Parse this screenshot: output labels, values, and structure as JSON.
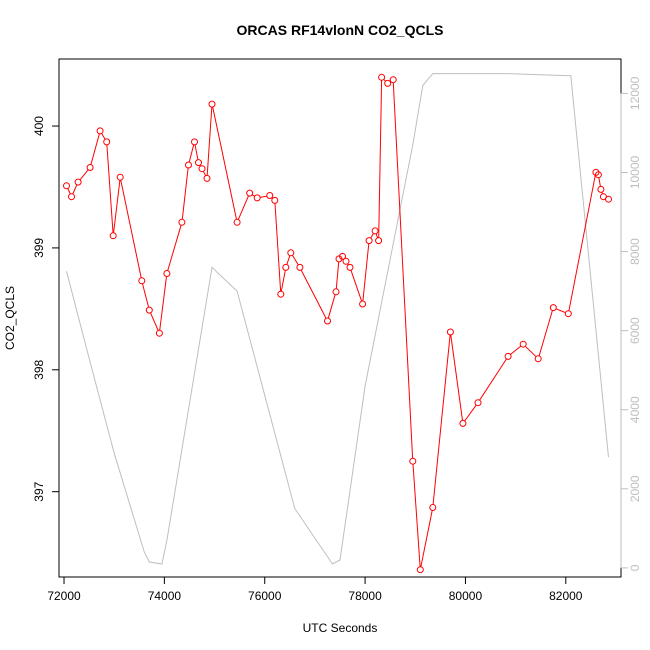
{
  "chart_data": {
    "type": "line",
    "title": "ORCAS RF14vlonN CO2_QCLS",
    "xlabel": "UTC Seconds",
    "ylabel": "CO2_QCLS",
    "xlim": [
      71900,
      83100
    ],
    "ylim": [
      396.3,
      400.55
    ],
    "y2lim": [
      -230,
      12870
    ],
    "x_ticks": [
      72000,
      74000,
      76000,
      78000,
      80000,
      82000
    ],
    "y_ticks": [
      397,
      398,
      399,
      400
    ],
    "y2_ticks": [
      0,
      2000,
      4000,
      6000,
      8000,
      10000,
      12000
    ],
    "colors": {
      "co2": "#ff0000",
      "altitude": "#bebebe"
    },
    "series": [
      {
        "kind": "co2",
        "x": [
          72050,
          72150,
          72280,
          72520,
          72720,
          72850,
          72980,
          73120,
          73550,
          73700,
          73900,
          74050,
          74350,
          74480,
          74600,
          74680,
          74750,
          74850,
          74950,
          75450,
          75700,
          75850,
          76100,
          76200,
          76320,
          76420,
          76520,
          76700,
          77250,
          77420,
          77480,
          77550,
          77620,
          77700,
          77950,
          78080,
          78200,
          78270,
          78330,
          78450,
          78560,
          78950,
          79100,
          79350,
          79700,
          79950,
          80250,
          80850,
          81150,
          81450,
          81750,
          82050,
          82600,
          82650,
          82700,
          82750,
          82850
        ],
        "y": [
          399.51,
          399.42,
          399.54,
          399.66,
          399.96,
          399.87,
          399.1,
          399.58,
          398.73,
          398.49,
          398.3,
          398.79,
          399.21,
          399.68,
          399.87,
          399.7,
          399.65,
          399.57,
          400.18,
          399.21,
          399.45,
          399.41,
          399.43,
          399.39,
          398.62,
          398.84,
          398.96,
          398.84,
          398.4,
          398.64,
          398.91,
          398.93,
          398.89,
          398.84,
          398.54,
          399.06,
          399.14,
          399.06,
          400.4,
          400.35,
          400.38,
          397.25,
          396.36,
          396.87,
          398.31,
          397.56,
          397.73,
          398.11,
          398.21,
          398.09,
          398.51,
          398.46,
          399.62,
          399.6,
          399.48,
          399.42,
          399.4
        ]
      },
      {
        "kind": "altitude",
        "x": [
          72050,
          72500,
          73000,
          73600,
          73700,
          73950,
          74050,
          74950,
          75450,
          76600,
          77350,
          77500,
          78000,
          78950,
          79150,
          79350,
          80800,
          82000,
          82100,
          82850
        ],
        "y": [
          7500,
          5300,
          2900,
          400,
          150,
          100,
          700,
          7600,
          7000,
          1500,
          100,
          200,
          4600,
          10700,
          12200,
          12500,
          12500,
          12450,
          12450,
          2800
        ]
      }
    ]
  }
}
